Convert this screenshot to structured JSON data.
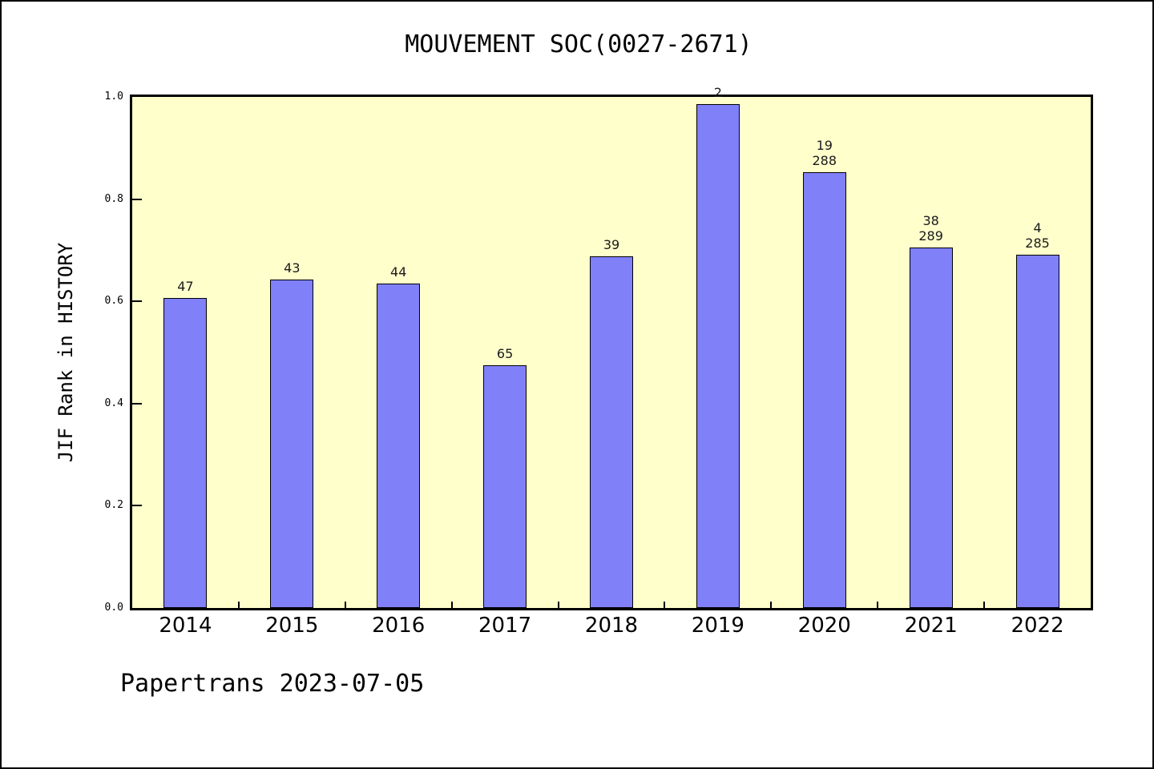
{
  "chart_data": {
    "type": "bar",
    "title": "MOUVEMENT SOC(0027-2671)",
    "ylabel": "JIF Rank in HISTORY",
    "xlabel": "",
    "categories": [
      "2014",
      "2015",
      "2016",
      "2017",
      "2018",
      "2019",
      "2020",
      "2021",
      "2022"
    ],
    "values": [
      0.607,
      0.642,
      0.635,
      0.475,
      0.688,
      0.986,
      0.852,
      0.706,
      0.692
    ],
    "bar_labels": [
      [
        "47"
      ],
      [
        "43"
      ],
      [
        "44"
      ],
      [
        "65"
      ],
      [
        "39"
      ],
      [
        "2"
      ],
      [
        "19",
        "288"
      ],
      [
        "38",
        "289"
      ],
      [
        "4",
        "285"
      ]
    ],
    "ylim": [
      0.0,
      1.0
    ],
    "yticks": [
      "0.0",
      "0.2",
      "0.4",
      "0.6",
      "0.8",
      "1.0"
    ],
    "grid": false,
    "legend": "none",
    "colors": {
      "bar_fill": "#8080F8",
      "bar_edge": "#000000",
      "plot_bg": "#FFFFCC",
      "text": "#1a1a1a"
    }
  },
  "footer": {
    "text": "Papertrans 2023-07-05"
  }
}
